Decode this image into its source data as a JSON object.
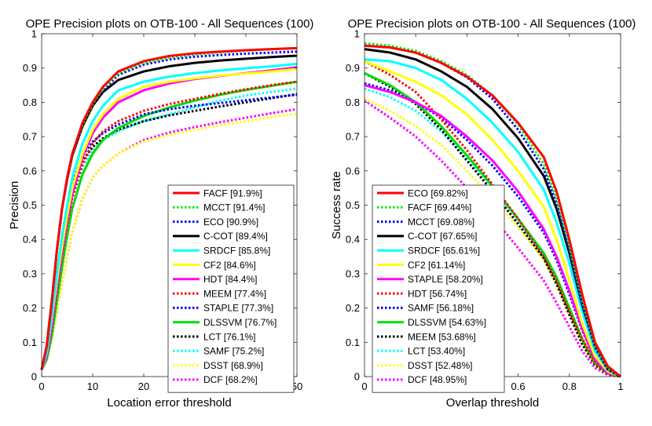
{
  "chart_data": [
    {
      "type": "line",
      "title": "OPE Precision plots on OTB-100 - All Sequences (100)",
      "xlabel": "Location error threshold",
      "ylabel": "Precision",
      "xlim": [
        0,
        50
      ],
      "ylim": [
        0,
        1
      ],
      "xticks": [
        0,
        10,
        20,
        30,
        40,
        50
      ],
      "xtick_labels": [
        "0",
        "10",
        "20",
        "30",
        "40",
        "50"
      ],
      "yticks": [
        0,
        0.1,
        0.2,
        0.3,
        0.4,
        0.5,
        0.6,
        0.7,
        0.8,
        0.9,
        1
      ],
      "ytick_labels": [
        "0",
        "0.1",
        "0.2",
        "0.3",
        "0.4",
        "0.5",
        "0.6",
        "0.7",
        "0.8",
        "0.9",
        "1"
      ],
      "legend_position": "bottom-right",
      "x": [
        0,
        1,
        2,
        3,
        4,
        5,
        6,
        8,
        10,
        12,
        15,
        20,
        25,
        30,
        35,
        40,
        45,
        50
      ],
      "series": [
        {
          "name": "FACF [91.9%]",
          "color": "#ff0000",
          "style": "solid",
          "values": [
            0.02,
            0.09,
            0.22,
            0.37,
            0.49,
            0.58,
            0.65,
            0.74,
            0.8,
            0.845,
            0.89,
            0.92,
            0.935,
            0.943,
            0.948,
            0.952,
            0.955,
            0.958
          ]
        },
        {
          "name": "MCCT [91.4%]",
          "color": "#00ee00",
          "style": "dotted",
          "values": [
            0.02,
            0.09,
            0.22,
            0.37,
            0.49,
            0.58,
            0.65,
            0.735,
            0.795,
            0.84,
            0.885,
            0.915,
            0.93,
            0.94,
            0.946,
            0.951,
            0.955,
            0.958
          ]
        },
        {
          "name": "ECO [90.9%]",
          "color": "#0000ff",
          "style": "dotted",
          "values": [
            0.02,
            0.09,
            0.22,
            0.37,
            0.49,
            0.58,
            0.65,
            0.735,
            0.795,
            0.835,
            0.88,
            0.91,
            0.925,
            0.933,
            0.938,
            0.942,
            0.945,
            0.948
          ]
        },
        {
          "name": "C-COT [89.4%]",
          "color": "#000000",
          "style": "solid",
          "values": [
            0.02,
            0.09,
            0.22,
            0.37,
            0.49,
            0.575,
            0.645,
            0.73,
            0.79,
            0.83,
            0.865,
            0.89,
            0.905,
            0.915,
            0.922,
            0.927,
            0.932,
            0.936
          ]
        },
        {
          "name": "SRDCF [85.8%]",
          "color": "#00ffff",
          "style": "solid",
          "values": [
            0.02,
            0.07,
            0.18,
            0.3,
            0.41,
            0.5,
            0.58,
            0.68,
            0.745,
            0.79,
            0.835,
            0.86,
            0.875,
            0.885,
            0.893,
            0.899,
            0.905,
            0.912
          ]
        },
        {
          "name": "CF2 [84.6%]",
          "color": "#ffff00",
          "style": "solid",
          "values": [
            0.02,
            0.07,
            0.17,
            0.28,
            0.38,
            0.47,
            0.55,
            0.65,
            0.72,
            0.765,
            0.81,
            0.845,
            0.86,
            0.87,
            0.878,
            0.884,
            0.89,
            0.897
          ]
        },
        {
          "name": "HDT [84.4%]",
          "color": "#ff00ff",
          "style": "solid",
          "values": [
            0.02,
            0.06,
            0.15,
            0.26,
            0.36,
            0.45,
            0.53,
            0.64,
            0.71,
            0.755,
            0.8,
            0.835,
            0.855,
            0.868,
            0.877,
            0.885,
            0.893,
            0.902
          ]
        },
        {
          "name": "MEEM [77.4%]",
          "color": "#ff0000",
          "style": "dotted",
          "values": [
            0.02,
            0.06,
            0.14,
            0.25,
            0.35,
            0.44,
            0.52,
            0.62,
            0.68,
            0.715,
            0.745,
            0.775,
            0.795,
            0.81,
            0.825,
            0.838,
            0.85,
            0.86
          ]
        },
        {
          "name": "STAPLE [77.3%]",
          "color": "#0000ff",
          "style": "dotted",
          "values": [
            0.02,
            0.07,
            0.17,
            0.29,
            0.4,
            0.49,
            0.56,
            0.645,
            0.685,
            0.71,
            0.735,
            0.765,
            0.78,
            0.79,
            0.798,
            0.806,
            0.814,
            0.822
          ]
        },
        {
          "name": "DLSSVM [76.7%]",
          "color": "#00dd00",
          "style": "solid",
          "values": [
            0.02,
            0.05,
            0.12,
            0.22,
            0.32,
            0.41,
            0.49,
            0.59,
            0.65,
            0.69,
            0.725,
            0.76,
            0.785,
            0.805,
            0.822,
            0.836,
            0.848,
            0.86
          ]
        },
        {
          "name": "LCT [76.1%]",
          "color": "#000000",
          "style": "dotted",
          "values": [
            0.02,
            0.06,
            0.15,
            0.27,
            0.38,
            0.47,
            0.54,
            0.63,
            0.67,
            0.695,
            0.72,
            0.745,
            0.762,
            0.775,
            0.788,
            0.8,
            0.812,
            0.824
          ]
        },
        {
          "name": "SAMF [75.2%]",
          "color": "#00ffff",
          "style": "dotted",
          "values": [
            0.02,
            0.06,
            0.15,
            0.27,
            0.37,
            0.45,
            0.52,
            0.61,
            0.66,
            0.69,
            0.715,
            0.745,
            0.765,
            0.785,
            0.805,
            0.82,
            0.83,
            0.84
          ]
        },
        {
          "name": "DSST [68.9%]",
          "color": "#ffff00",
          "style": "dotted",
          "values": [
            0.02,
            0.05,
            0.11,
            0.19,
            0.27,
            0.35,
            0.42,
            0.52,
            0.58,
            0.615,
            0.65,
            0.685,
            0.705,
            0.72,
            0.733,
            0.745,
            0.756,
            0.767
          ]
        },
        {
          "name": "DCF [68.2%]",
          "color": "#ff00ff",
          "style": "dotted",
          "values": [
            0.02,
            0.05,
            0.11,
            0.19,
            0.27,
            0.35,
            0.42,
            0.52,
            0.58,
            0.615,
            0.65,
            0.69,
            0.712,
            0.728,
            0.742,
            0.755,
            0.768,
            0.78
          ]
        }
      ]
    },
    {
      "type": "line",
      "title": "OPE Precision plots on OTB-100 - All Sequences (100)",
      "xlabel": "Overlap threshold",
      "ylabel": "Success rate",
      "xlim": [
        0,
        1
      ],
      "ylim": [
        0,
        1
      ],
      "xticks": [
        0,
        0.2,
        0.4,
        0.6,
        0.8,
        1
      ],
      "xtick_labels": [
        "0",
        "0.2",
        "0.4",
        "0.6",
        "0.8",
        "1"
      ],
      "yticks": [
        0,
        0.1,
        0.2,
        0.3,
        0.4,
        0.5,
        0.6,
        0.7,
        0.8,
        0.9,
        1
      ],
      "ytick_labels": [
        "0",
        "0.1",
        "0.2",
        "0.3",
        "0.4",
        "0.5",
        "0.6",
        "0.7",
        "0.8",
        "0.9",
        "1"
      ],
      "legend_position": "bottom-left",
      "x": [
        0,
        0.1,
        0.2,
        0.3,
        0.4,
        0.5,
        0.6,
        0.7,
        0.75,
        0.8,
        0.85,
        0.9,
        0.95,
        1.0
      ],
      "series": [
        {
          "name": "ECO [69.82%]",
          "color": "#ff0000",
          "style": "solid",
          "values": [
            0.965,
            0.96,
            0.945,
            0.915,
            0.875,
            0.82,
            0.74,
            0.64,
            0.54,
            0.4,
            0.24,
            0.1,
            0.03,
            0.0
          ]
        },
        {
          "name": "FACF [69.44%]",
          "color": "#00ee00",
          "style": "dotted",
          "values": [
            0.972,
            0.965,
            0.95,
            0.92,
            0.88,
            0.82,
            0.735,
            0.62,
            0.52,
            0.38,
            0.22,
            0.09,
            0.02,
            0.0
          ]
        },
        {
          "name": "MCCT [69.08%]",
          "color": "#0000ff",
          "style": "dotted",
          "values": [
            0.97,
            0.962,
            0.945,
            0.915,
            0.873,
            0.81,
            0.72,
            0.605,
            0.505,
            0.37,
            0.21,
            0.085,
            0.02,
            0.0
          ]
        },
        {
          "name": "C-COT [67.65%]",
          "color": "#000000",
          "style": "solid",
          "values": [
            0.955,
            0.945,
            0.925,
            0.89,
            0.845,
            0.78,
            0.695,
            0.585,
            0.49,
            0.36,
            0.21,
            0.09,
            0.02,
            0.0
          ]
        },
        {
          "name": "SRDCF [65.61%]",
          "color": "#00ffff",
          "style": "solid",
          "values": [
            0.925,
            0.92,
            0.9,
            0.865,
            0.81,
            0.74,
            0.655,
            0.545,
            0.45,
            0.33,
            0.19,
            0.075,
            0.02,
            0.0
          ]
        },
        {
          "name": "CF2 [61.14%]",
          "color": "#ffff00",
          "style": "solid",
          "values": [
            0.92,
            0.89,
            0.86,
            0.82,
            0.765,
            0.69,
            0.6,
            0.495,
            0.4,
            0.28,
            0.155,
            0.06,
            0.015,
            0.0
          ]
        },
        {
          "name": "STAPLE [58.20%]",
          "color": "#ff00ff",
          "style": "solid",
          "values": [
            0.85,
            0.83,
            0.8,
            0.76,
            0.7,
            0.63,
            0.54,
            0.43,
            0.35,
            0.25,
            0.14,
            0.05,
            0.01,
            0.0
          ]
        },
        {
          "name": "HDT [56.74%]",
          "color": "#ff0000",
          "style": "dotted",
          "values": [
            0.92,
            0.88,
            0.83,
            0.75,
            0.66,
            0.56,
            0.46,
            0.35,
            0.28,
            0.19,
            0.11,
            0.04,
            0.01,
            0.0
          ]
        },
        {
          "name": "SAMF [56.18%]",
          "color": "#0000ff",
          "style": "dotted",
          "values": [
            0.855,
            0.835,
            0.8,
            0.755,
            0.69,
            0.615,
            0.525,
            0.42,
            0.34,
            0.24,
            0.135,
            0.05,
            0.01,
            0.0
          ]
        },
        {
          "name": "DLSSVM [54.63%]",
          "color": "#00dd00",
          "style": "solid",
          "values": [
            0.885,
            0.85,
            0.8,
            0.73,
            0.645,
            0.555,
            0.46,
            0.36,
            0.29,
            0.2,
            0.11,
            0.04,
            0.01,
            0.0
          ]
        },
        {
          "name": "MEEM [53.68%]",
          "color": "#000000",
          "style": "dotted",
          "values": [
            0.885,
            0.845,
            0.795,
            0.72,
            0.63,
            0.54,
            0.445,
            0.345,
            0.27,
            0.18,
            0.095,
            0.035,
            0.008,
            0.0
          ]
        },
        {
          "name": "LCT [53.40%]",
          "color": "#00ffff",
          "style": "dotted",
          "values": [
            0.84,
            0.815,
            0.775,
            0.715,
            0.64,
            0.55,
            0.455,
            0.35,
            0.28,
            0.19,
            0.1,
            0.035,
            0.008,
            0.0
          ]
        },
        {
          "name": "DSST [52.48%]",
          "color": "#ffff00",
          "style": "dotted",
          "values": [
            0.81,
            0.775,
            0.73,
            0.675,
            0.6,
            0.52,
            0.435,
            0.34,
            0.27,
            0.185,
            0.1,
            0.035,
            0.008,
            0.0
          ]
        },
        {
          "name": "DCF [48.95%]",
          "color": "#ff00ff",
          "style": "dotted",
          "values": [
            0.805,
            0.755,
            0.7,
            0.63,
            0.55,
            0.465,
            0.375,
            0.28,
            0.215,
            0.145,
            0.075,
            0.025,
            0.005,
            0.0
          ]
        }
      ]
    }
  ]
}
